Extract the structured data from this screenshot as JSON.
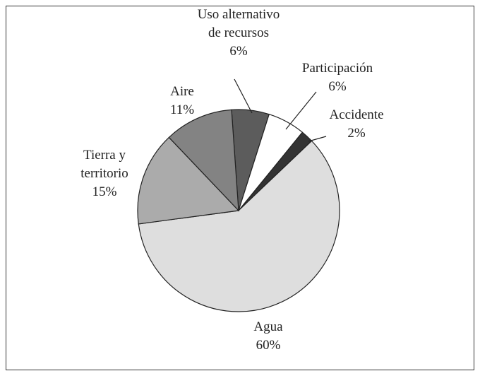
{
  "chart_data": {
    "type": "pie",
    "categories": [
      "Uso alternativo de recursos",
      "Participación",
      "Accidente",
      "Agua",
      "Tierra y territorio",
      "Aire"
    ],
    "values": [
      6,
      6,
      2,
      60,
      15,
      11
    ],
    "value_labels": [
      "6%",
      "6%",
      "2%",
      "60%",
      "15%",
      "11%"
    ],
    "colors": [
      "#5c5c5c",
      "#ffffff",
      "#333333",
      "#dedede",
      "#ababab",
      "#838383"
    ]
  }
}
